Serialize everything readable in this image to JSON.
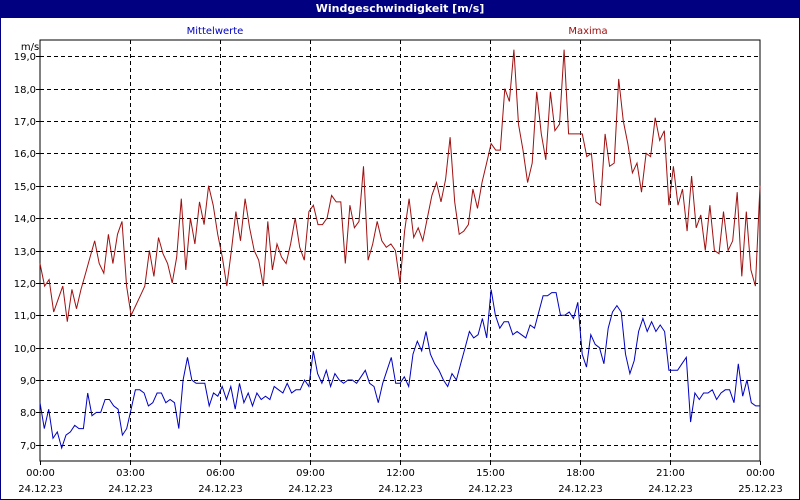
{
  "window": {
    "title": "Windgeschwindigkeit [m/s]"
  },
  "chart_data": {
    "type": "line",
    "ylabel": "m/s",
    "ylim": [
      6.5,
      19.5
    ],
    "yticks": [
      "7,0",
      "8,0",
      "9,0",
      "10,0",
      "11,0",
      "12,0",
      "13,0",
      "14,0",
      "15,0",
      "16,0",
      "17,0",
      "18,0",
      "19,0"
    ],
    "grid": true,
    "xticks": [
      {
        "time": "00:00",
        "date": "24.12.23"
      },
      {
        "time": "03:00",
        "date": "24.12.23"
      },
      {
        "time": "06:00",
        "date": "24.12.23"
      },
      {
        "time": "09:00",
        "date": "24.12.23"
      },
      {
        "time": "12:00",
        "date": "24.12.23"
      },
      {
        "time": "15:00",
        "date": "24.12.23"
      },
      {
        "time": "18:00",
        "date": "24.12.23"
      },
      {
        "time": "21:00",
        "date": "24.12.23"
      },
      {
        "time": "00:00",
        "date": "25.12.23"
      }
    ],
    "x_unit": "hours from 24.12.23 00:00",
    "series": [
      {
        "name": "Maxima",
        "color": "#a01010",
        "values": [
          12.6,
          11.9,
          12.1,
          11.1,
          11.5,
          11.9,
          10.8,
          11.8,
          11.2,
          11.8,
          12.3,
          12.8,
          13.3,
          12.6,
          12.3,
          13.5,
          12.6,
          13.5,
          13.9,
          11.9,
          11.0,
          11.3,
          11.6,
          11.9,
          13.0,
          12.2,
          13.4,
          12.9,
          12.6,
          12.0,
          12.8,
          14.6,
          12.4,
          14.0,
          13.2,
          14.5,
          13.8,
          15.0,
          14.4,
          13.5,
          12.8,
          11.9,
          13.0,
          14.2,
          13.3,
          14.6,
          13.7,
          13.0,
          12.7,
          11.9,
          13.9,
          12.4,
          13.2,
          12.8,
          12.6,
          13.2,
          14.0,
          13.1,
          12.7,
          14.2,
          14.4,
          13.8,
          13.8,
          14.0,
          14.7,
          14.5,
          14.5,
          12.6,
          14.4,
          13.7,
          13.9,
          15.6,
          12.7,
          13.2,
          13.9,
          13.3,
          13.1,
          13.2,
          13.0,
          12.0,
          13.6,
          14.6,
          13.4,
          13.7,
          13.3,
          14.0,
          14.7,
          15.1,
          14.5,
          15.2,
          16.5,
          14.5,
          13.5,
          13.6,
          13.8,
          14.9,
          14.3,
          15.1,
          15.7,
          16.3,
          16.1,
          16.1,
          18.0,
          17.6,
          19.2,
          16.9,
          16.1,
          15.1,
          15.7,
          17.9,
          16.6,
          15.8,
          17.9,
          16.7,
          16.9,
          19.2,
          16.6,
          16.6,
          16.6,
          16.6,
          15.9,
          16.0,
          14.5,
          14.4,
          16.6,
          15.6,
          15.7,
          18.3,
          17.0,
          16.3,
          15.4,
          15.7,
          14.8,
          16.0,
          15.9,
          17.1,
          16.4,
          16.7,
          14.4,
          15.6,
          14.4,
          14.9,
          13.6,
          15.3,
          13.7,
          14.1,
          13.0,
          14.4,
          13.0,
          12.9,
          14.2,
          13.0,
          13.3,
          14.8,
          12.2,
          14.2,
          12.4,
          11.9,
          15.0
        ]
      },
      {
        "name": "Mittelwerte",
        "color": "#0000c0",
        "values": [
          8.3,
          7.5,
          8.1,
          7.2,
          7.4,
          6.9,
          7.3,
          7.4,
          7.6,
          7.5,
          7.5,
          8.6,
          7.9,
          8.0,
          8.0,
          8.4,
          8.4,
          8.2,
          8.1,
          7.3,
          7.5,
          8.1,
          8.7,
          8.7,
          8.6,
          8.2,
          8.3,
          8.6,
          8.6,
          8.3,
          8.4,
          8.3,
          7.5,
          9.0,
          9.7,
          9.0,
          8.9,
          8.9,
          8.9,
          8.2,
          8.6,
          8.5,
          8.8,
          8.4,
          8.8,
          8.1,
          8.9,
          8.3,
          8.6,
          8.2,
          8.6,
          8.4,
          8.5,
          8.4,
          8.8,
          8.7,
          8.6,
          8.9,
          8.6,
          8.7,
          8.7,
          9.0,
          8.8,
          9.9,
          9.2,
          8.9,
          9.3,
          8.8,
          9.2,
          9.0,
          8.9,
          9.0,
          9.0,
          8.9,
          9.1,
          9.3,
          8.9,
          8.8,
          8.3,
          8.9,
          9.3,
          9.7,
          8.9,
          8.9,
          9.1,
          8.8,
          9.8,
          10.2,
          9.9,
          10.5,
          9.8,
          9.5,
          9.3,
          9.0,
          8.8,
          9.2,
          9.0,
          9.5,
          10.0,
          10.5,
          10.3,
          10.4,
          10.9,
          10.3,
          11.8,
          11.0,
          10.6,
          10.8,
          10.8,
          10.4,
          10.5,
          10.4,
          10.3,
          10.7,
          10.6,
          11.1,
          11.6,
          11.6,
          11.7,
          11.7,
          11.0,
          11.0,
          11.1,
          10.9,
          11.4,
          9.8,
          9.4,
          10.4,
          10.1,
          10.0,
          9.5,
          10.6,
          11.1,
          11.3,
          11.1,
          9.8,
          9.2,
          9.6,
          10.5,
          10.9,
          10.5,
          10.8,
          10.5,
          10.7,
          10.5,
          9.3,
          9.3,
          9.3,
          9.5,
          9.7,
          7.7,
          8.6,
          8.4,
          8.6,
          8.6,
          8.7,
          8.4,
          8.6,
          8.7,
          8.7,
          8.3,
          9.5,
          8.5,
          9.0,
          8.3,
          8.2,
          8.2
        ]
      }
    ],
    "legend": "top"
  }
}
